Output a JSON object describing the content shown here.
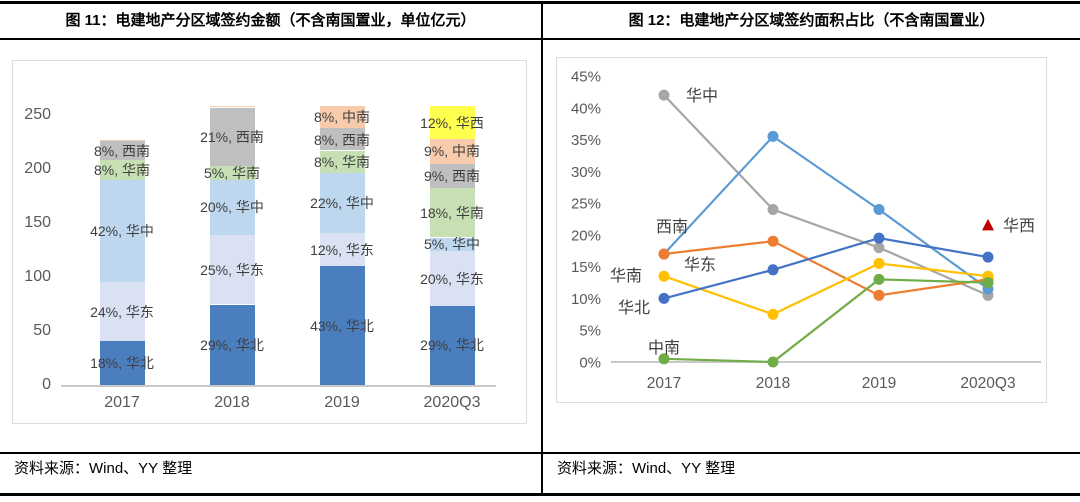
{
  "panels": {
    "left": {
      "title": "图 11：电建地产分区域签约金额（不含南国置业，单位亿元）",
      "source": "资料来源：Wind、YY 整理"
    },
    "right": {
      "title": "图 12：电建地产分区域签约面积占比（不含南国置业）",
      "source": "资料来源：Wind、YY 整理"
    }
  },
  "chart_data": [
    {
      "type": "bar",
      "stacked": true,
      "title": "图 11：电建地产分区域签约金额（不含南国置业，单位亿元）",
      "unit": "亿元",
      "categories": [
        "2017",
        "2018",
        "2019",
        "2020Q3"
      ],
      "yticks": [
        0,
        50,
        100,
        150,
        200,
        250
      ],
      "ylim": [
        0,
        260
      ],
      "grid": false,
      "totals": [
        227,
        258,
        258,
        258
      ],
      "region_colors": {
        "华北": "#4a7ebe",
        "华东": "#d9e1f2",
        "华中": "#bdd7ee",
        "华南": "#c6e0b4",
        "西南": "#bfbfbf",
        "中南": "#f8cbad",
        "华西": "#ffff4d"
      },
      "stacks": [
        [
          {
            "region": "华北",
            "pct": 18
          },
          {
            "region": "华东",
            "pct": 24
          },
          {
            "region": "华中",
            "pct": 42
          },
          {
            "region": "华南",
            "pct": 8
          },
          {
            "region": "西南",
            "pct": 8
          },
          {
            "region": "中南",
            "pct": 0.4,
            "label": false
          }
        ],
        [
          {
            "region": "华北",
            "pct": 29
          },
          {
            "region": "华东",
            "pct": 25
          },
          {
            "region": "华中",
            "pct": 20
          },
          {
            "region": "华南",
            "pct": 5
          },
          {
            "region": "西南",
            "pct": 21
          },
          {
            "region": "中南",
            "pct": 0.4,
            "label": false
          }
        ],
        [
          {
            "region": "华北",
            "pct": 43
          },
          {
            "region": "华东",
            "pct": 12
          },
          {
            "region": "华中",
            "pct": 22
          },
          {
            "region": "华南",
            "pct": 8
          },
          {
            "region": "西南",
            "pct": 8
          },
          {
            "region": "中南",
            "pct": 8
          }
        ],
        [
          {
            "region": "华北",
            "pct": 29
          },
          {
            "region": "华东",
            "pct": 20
          },
          {
            "region": "华中",
            "pct": 5
          },
          {
            "region": "华南",
            "pct": 18
          },
          {
            "region": "西南",
            "pct": 9
          },
          {
            "region": "中南",
            "pct": 9
          },
          {
            "region": "华西",
            "pct": 12
          }
        ]
      ],
      "label_format": "{pct}%, {region}"
    },
    {
      "type": "line",
      "title": "图 12：电建地产分区域签约面积占比（不含南国置业）",
      "categories": [
        "2017",
        "2018",
        "2019",
        "2020Q3"
      ],
      "ylim": [
        0,
        45
      ],
      "ytick_labels": [
        "0%",
        "5%",
        "10%",
        "15%",
        "20%",
        "25%",
        "30%",
        "35%",
        "40%",
        "45%"
      ],
      "grid": false,
      "legend_position": "inline-data-labels",
      "series": [
        {
          "name": "华中",
          "color": "#a6a6a6",
          "values": [
            42,
            24,
            18,
            10.5
          ]
        },
        {
          "name": "西南",
          "color": "#5b9bd5",
          "values": [
            17,
            35.5,
            24,
            11.5
          ]
        },
        {
          "name": "华东",
          "color": "#ed7d31",
          "values": [
            17,
            19,
            10.5,
            13
          ]
        },
        {
          "name": "华南",
          "color": "#ffc000",
          "values": [
            13.5,
            7.5,
            15.5,
            13.5
          ]
        },
        {
          "name": "中南",
          "color": "#70ad47",
          "values": [
            0.5,
            0,
            13,
            12.5
          ]
        },
        {
          "name": "华北",
          "color": "#4472c4",
          "values": [
            10,
            14.5,
            19.5,
            16.5
          ]
        },
        {
          "name": "华西",
          "color": "#c00000",
          "values": [
            null,
            null,
            null,
            21.5
          ],
          "marker": "triangle",
          "line": false
        }
      ],
      "series_labels": [
        {
          "text": "华中",
          "x": 129,
          "y": 43,
          "anchor": "start"
        },
        {
          "text": "西南",
          "x": 99,
          "y": 174,
          "anchor": "start"
        },
        {
          "text": "华东",
          "x": 127,
          "y": 212,
          "anchor": "start"
        },
        {
          "text": "华南",
          "x": 85,
          "y": 223,
          "anchor": "end"
        },
        {
          "text": "华北",
          "x": 93,
          "y": 255,
          "anchor": "end"
        },
        {
          "text": "中南",
          "x": 107,
          "y": 295,
          "anchor": "middle"
        },
        {
          "text": "华西",
          "x": 446,
          "y": 173,
          "anchor": "start"
        }
      ]
    }
  ]
}
